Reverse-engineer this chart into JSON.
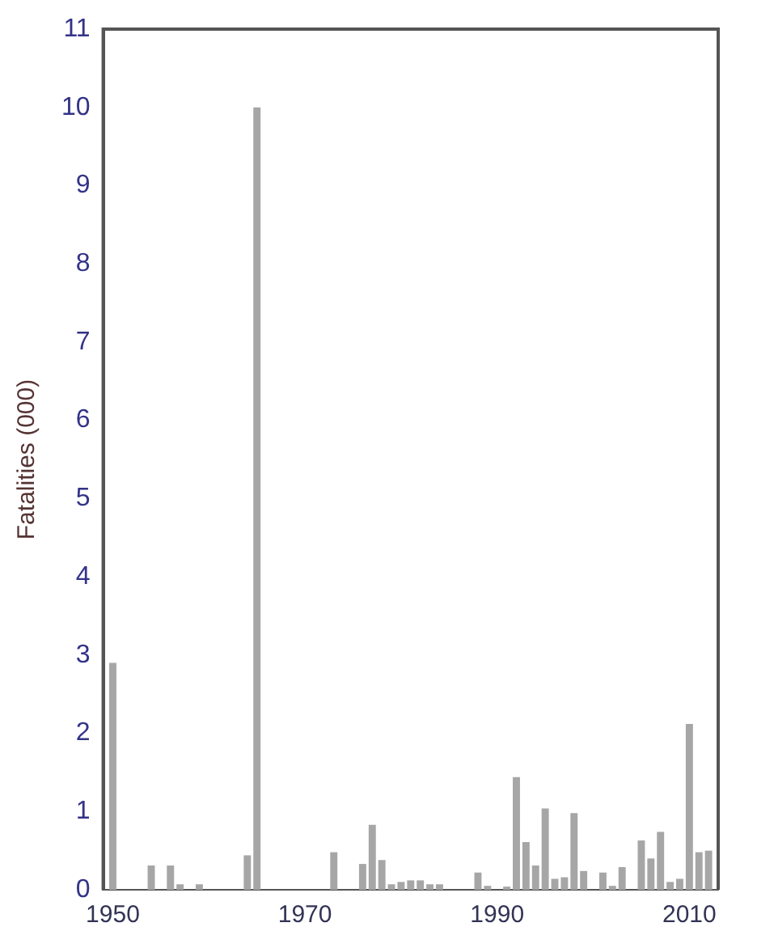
{
  "chart_data": {
    "type": "bar",
    "ylabel": "Fatalities (000)",
    "x": [
      1950,
      1954,
      1956,
      1957,
      1959,
      1964,
      1965,
      1973,
      1976,
      1977,
      1978,
      1979,
      1980,
      1981,
      1982,
      1983,
      1984,
      1988,
      1989,
      1991,
      1992,
      1993,
      1994,
      1995,
      1996,
      1997,
      1998,
      1999,
      2001,
      2002,
      2003,
      2005,
      2006,
      2007,
      2008,
      2009,
      2010,
      2011,
      2012
    ],
    "values": [
      2.9,
      0.31,
      0.31,
      0.07,
      0.07,
      0.44,
      10.0,
      0.48,
      0.33,
      0.83,
      0.38,
      0.07,
      0.1,
      0.12,
      0.12,
      0.07,
      0.07,
      0.22,
      0.05,
      0.04,
      1.44,
      0.61,
      0.31,
      1.04,
      0.14,
      0.16,
      0.98,
      0.24,
      0.22,
      0.05,
      0.29,
      0.63,
      0.4,
      0.74,
      0.1,
      0.14,
      2.12,
      0.48,
      0.5
    ],
    "color": "#a6a6a6",
    "xlim": [
      1949,
      2013
    ],
    "xticks": [
      1950,
      1970,
      1990,
      2010
    ],
    "ylim": [
      0,
      11
    ],
    "yticks": [
      0,
      1,
      2,
      3,
      4,
      5,
      6,
      7,
      8,
      9,
      10,
      11
    ],
    "grid": false,
    "legend": false
  }
}
